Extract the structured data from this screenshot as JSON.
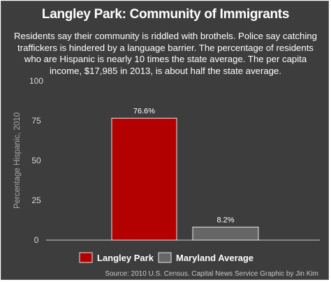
{
  "title": "Langley Park: Community of Immigrants",
  "subtitle": "Residents say their community is riddled with brothels. Police say catching traffickers is hindered by a language barrier. The percentage of residents who are Hispanic is nearly 10 times the state average. The per capita income, $17,985 in 2013, is about half the state average.",
  "source": "Source: 2010 U.S. Census. Capital News Service Graphic by Jin Kim",
  "colors": {
    "background": "#3d3d3d",
    "langley": "#b30000",
    "maryland": "#666666"
  },
  "chart_data": {
    "type": "bar",
    "categories": [
      "Langley Park",
      "Maryland Average"
    ],
    "values": [
      76.6,
      8.2
    ],
    "data_labels": [
      "76.6%",
      "8.2%"
    ],
    "colors": [
      "#b30000",
      "#666666"
    ],
    "ylabel": "Percentage Hispanic, 2010",
    "xlabel": "",
    "ylim": [
      0,
      100
    ],
    "yticks": [
      0,
      25,
      50,
      75,
      100
    ],
    "ytick_labels": [
      "0",
      "25",
      "50",
      "75",
      "100"
    ],
    "grid": false,
    "legend": "bottom"
  }
}
